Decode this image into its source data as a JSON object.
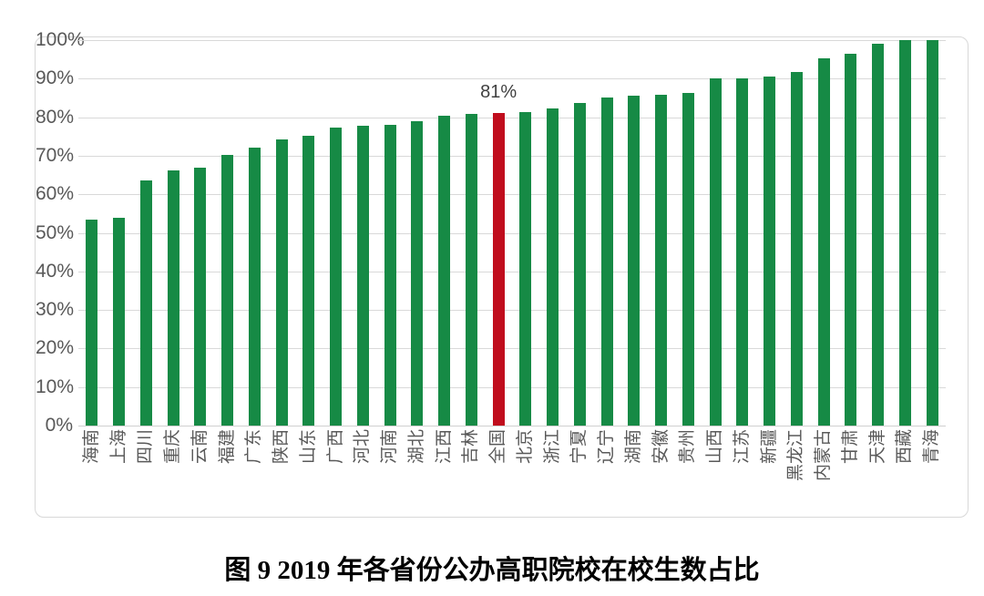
{
  "chart_data": {
    "type": "bar",
    "title": "图 9 2019 年各省份公办高职院校在校生数占比",
    "categories": [
      "海南",
      "上海",
      "四川",
      "重庆",
      "云南",
      "福建",
      "广东",
      "陕西",
      "山东",
      "广西",
      "河北",
      "河南",
      "湖北",
      "江西",
      "吉林",
      "全国",
      "北京",
      "浙江",
      "宁夏",
      "辽宁",
      "湖南",
      "安徽",
      "贵州",
      "山西",
      "江苏",
      "新疆",
      "黑龙江",
      "内蒙古",
      "甘肃",
      "天津",
      "西藏",
      "青海"
    ],
    "values": [
      53.4,
      54.0,
      63.5,
      66.1,
      66.8,
      70.3,
      72.0,
      74.2,
      75.1,
      77.4,
      77.7,
      78.0,
      79.0,
      80.5,
      80.9,
      81.0,
      81.3,
      82.2,
      83.7,
      85.1,
      85.5,
      85.8,
      86.3,
      90.1,
      90.1,
      90.6,
      91.7,
      95.3,
      96.5,
      99.0,
      100.0,
      100.0
    ],
    "highlight_index": 15,
    "highlight_label": "81%",
    "y_tick_labels": [
      "100%",
      "90%",
      "80%",
      "70%",
      "60%",
      "50%",
      "40%",
      "30%",
      "20%",
      "10%",
      "0%"
    ],
    "ylim": [
      0,
      100
    ],
    "grid": true,
    "legend": "none",
    "colors": {
      "bar": "#168a45",
      "highlight": "#c00d1d",
      "gridline": "#d9d9d9",
      "axis_text": "#595959",
      "annotation_text": "#404040",
      "border": "#d8d8d8"
    }
  }
}
